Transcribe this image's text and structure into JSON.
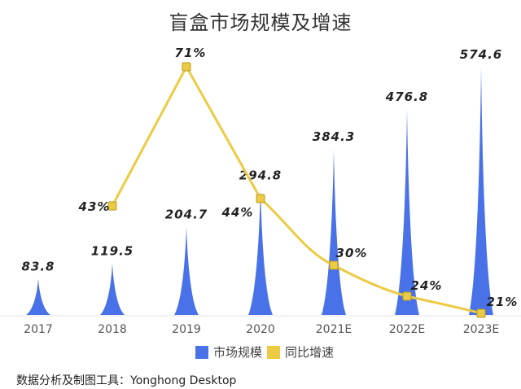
{
  "title": "盲盒市场规模及增速",
  "source": "数据分析及制图工具：Yonghong Desktop",
  "colors": {
    "bar": "#4a72e8",
    "line": "#eccb44",
    "marker_stroke": "#b99a22",
    "text": "#222222",
    "axis": "#e6e6e6"
  },
  "legend": [
    {
      "label": "市场规模",
      "color": "#4a72e8"
    },
    {
      "label": "同比增速",
      "color": "#eccb44"
    }
  ],
  "chart_data": {
    "type": "bar",
    "title": "盲盒市场规模及增速",
    "categories": [
      "2017",
      "2018",
      "2019",
      "2020",
      "2021E",
      "2022E",
      "2023E"
    ],
    "series": [
      {
        "name": "市场规模",
        "type": "bar",
        "values": [
          83.8,
          119.5,
          204.7,
          294.8,
          384.3,
          476.8,
          574.6
        ],
        "labels": [
          "83.8",
          "119.5",
          "204.7",
          "294.8",
          "384.3",
          "476.8",
          "574.6"
        ]
      },
      {
        "name": "同比增速",
        "type": "line",
        "values": [
          null,
          43,
          71,
          44,
          30,
          24,
          21
        ],
        "labels": [
          "",
          "43%",
          "71%",
          "44%",
          "30%",
          "24%",
          "21%"
        ]
      }
    ],
    "xlabel": "",
    "ylabel": "",
    "grid": false,
    "legend_position": "bottom"
  }
}
